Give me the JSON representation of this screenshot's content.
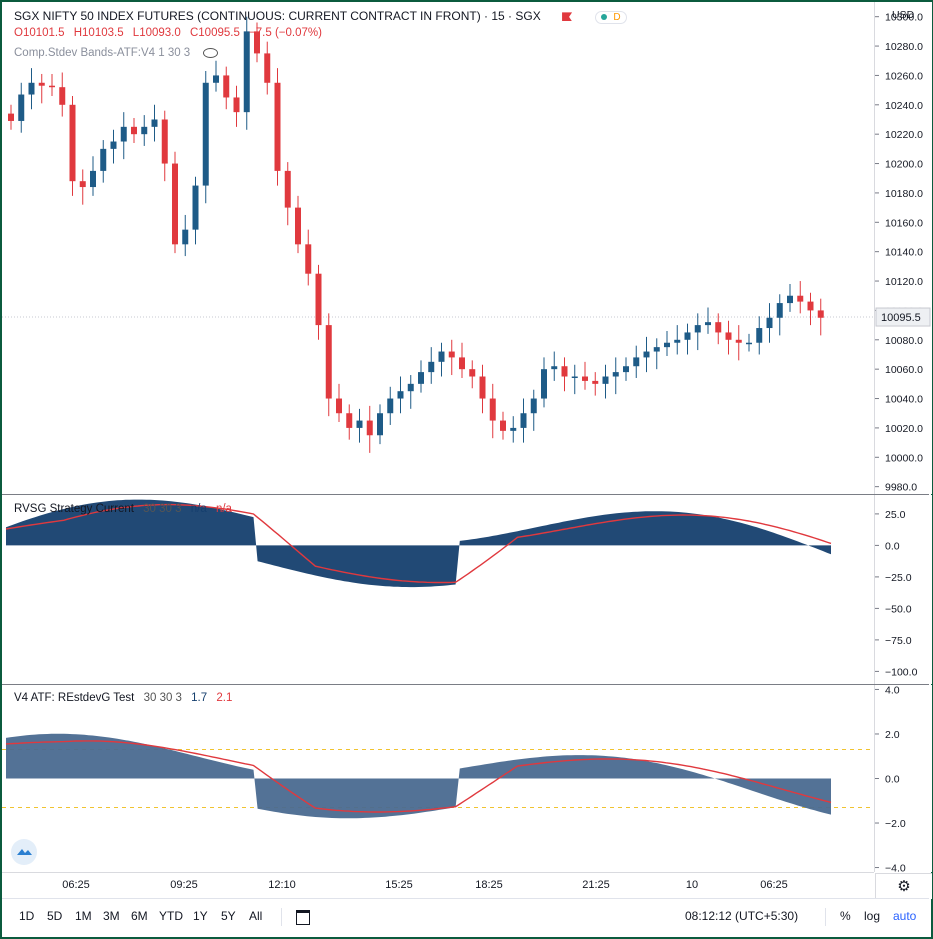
{
  "main": {
    "title": "SGX NIFTY 50 INDEX FUTURES (CONTINUOUS: CURRENT CONTRACT IN FRONT) · 15 · SGX",
    "ohlc": {
      "o": "O10101.5",
      "h": "H10103.5",
      "l": "L10093.0",
      "c": "C10095.5",
      "chg": "−7.5 (−0.07%)"
    },
    "indicator": "Comp.Stdev Bands-ATF:V4 1 30 3",
    "currency": "USD",
    "last_price": "10095.5",
    "price_ticks": [
      "10300.0",
      "10280.0",
      "10260.0",
      "10240.0",
      "10220.0",
      "10200.0",
      "10180.0",
      "10160.0",
      "10140.0",
      "10120.0",
      "10100.0",
      "10080.0",
      "10060.0",
      "10040.0",
      "10020.0",
      "10000.0",
      "9980.0"
    ],
    "price_range": [
      9975,
      10310
    ]
  },
  "pane2": {
    "title": "RVSG Strategy Current",
    "params": "30 30 3",
    "v1": "n/a",
    "v2": "n/a",
    "ticks": [
      "25.0",
      "0.0",
      "−25.0",
      "−50.0",
      "−75.0",
      "−100.0"
    ]
  },
  "pane3": {
    "title": "V4 ATF: REstdevG Test",
    "params": "30 30 3",
    "v1": "1.7",
    "v2": "2.1",
    "ticks": [
      "4.0",
      "2.0",
      "0.0",
      "−2.0",
      "−4.0"
    ]
  },
  "xaxis": [
    "06:25",
    "09:25",
    "12:10",
    "15:25",
    "18:25",
    "21:25",
    "10",
    "06:25"
  ],
  "toolbar": {
    "ranges": [
      "1D",
      "5D",
      "1M",
      "3M",
      "6M",
      "YTD",
      "1Y",
      "5Y",
      "All"
    ],
    "time": "08:12:12 (UTC+5:30)",
    "percent": "%",
    "log": "log",
    "auto": "auto"
  },
  "colors": {
    "up": "#1e5b87",
    "down": "#e0393e",
    "area1": "#153f6e",
    "area2": "#4a6a90",
    "signal": "#e0393e",
    "zero_band": "#f0c330"
  },
  "chart_data": {
    "type": "candlestick",
    "candles_close": [
      10229,
      10247,
      10255,
      10253,
      10252,
      10240,
      10188,
      10184,
      10195,
      10210,
      10215,
      10225,
      10220,
      10225,
      10230,
      10200,
      10145,
      10155,
      10185,
      10255,
      10260,
      10245,
      10235,
      10290,
      10275,
      10255,
      10195,
      10170,
      10145,
      10125,
      10090,
      10040,
      10030,
      10020,
      10025,
      10015,
      10030,
      10040,
      10045,
      10050,
      10058,
      10065,
      10072,
      10068,
      10060,
      10055,
      10040,
      10025,
      10018,
      10020,
      10030,
      10040,
      10060,
      10062,
      10055,
      10055,
      10052,
      10050,
      10055,
      10058,
      10062,
      10068,
      10072,
      10075,
      10078,
      10080,
      10085,
      10090,
      10092,
      10085,
      10080,
      10078,
      10078,
      10088,
      10095,
      10105,
      10110,
      10106,
      10100,
      10095
    ]
  }
}
